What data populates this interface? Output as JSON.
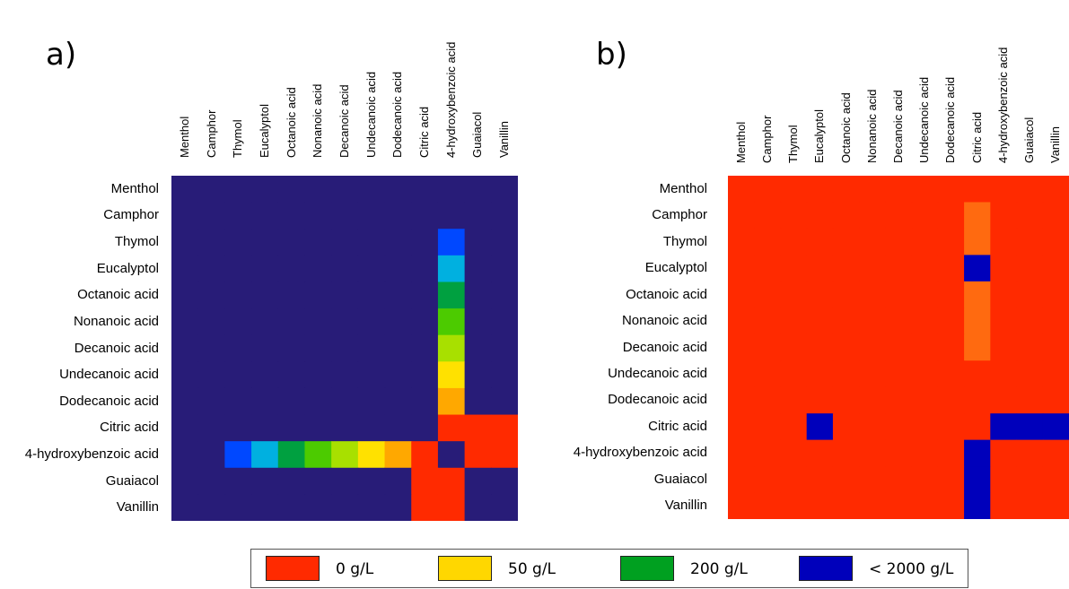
{
  "chart_data": [
    {
      "type": "heatmap",
      "panel_label": "a)",
      "title": "",
      "compounds": [
        "Menthol",
        "Camphor",
        "Thymol",
        "Eucalyptol",
        "Octanoic acid",
        "Nonanoic acid",
        "Decanoic acid",
        "Undecanoic acid",
        "Dodecanoic acid",
        "Citric acid",
        "4-hydroxybenzoic acid",
        "Guaiacol",
        "Vanillin"
      ],
      "unit": "g/L",
      "background": "< 2000 g/L",
      "values_g_per_L": [
        [
          2000,
          2000,
          2000,
          2000,
          2000,
          2000,
          2000,
          2000,
          2000,
          2000,
          2000,
          2000,
          2000
        ],
        [
          2000,
          2000,
          2000,
          2000,
          2000,
          2000,
          2000,
          2000,
          2000,
          2000,
          1500,
          2000,
          2000
        ],
        [
          2000,
          2000,
          2000,
          2000,
          2000,
          2000,
          2000,
          2000,
          2000,
          2000,
          900,
          2000,
          2000
        ],
        [
          2000,
          2000,
          2000,
          2000,
          2000,
          2000,
          2000,
          2000,
          2000,
          2000,
          500,
          2000,
          2000
        ],
        [
          2000,
          2000,
          2000,
          2000,
          2000,
          2000,
          2000,
          2000,
          2000,
          2000,
          250,
          2000,
          2000
        ],
        [
          2000,
          2000,
          2000,
          2000,
          2000,
          2000,
          2000,
          2000,
          2000,
          2000,
          150,
          2000,
          2000
        ],
        [
          2000,
          2000,
          2000,
          2000,
          2000,
          2000,
          2000,
          2000,
          2000,
          2000,
          80,
          2000,
          2000
        ],
        [
          2000,
          2000,
          2000,
          2000,
          2000,
          2000,
          2000,
          2000,
          2000,
          2000,
          50,
          2000,
          2000
        ],
        [
          2000,
          2000,
          2000,
          2000,
          2000,
          2000,
          2000,
          2000,
          2000,
          2000,
          20,
          2000,
          2000
        ],
        [
          2000,
          2000,
          2000,
          2000,
          2000,
          2000,
          2000,
          2000,
          2000,
          2000,
          0,
          0,
          0
        ],
        [
          2000,
          1500,
          900,
          500,
          250,
          150,
          80,
          50,
          20,
          0,
          2000,
          0,
          0
        ],
        [
          2000,
          2000,
          2000,
          2000,
          2000,
          2000,
          2000,
          2000,
          2000,
          0,
          0,
          2000,
          2000
        ],
        [
          2000,
          2000,
          2000,
          2000,
          2000,
          2000,
          2000,
          2000,
          2000,
          0,
          0,
          2000,
          2000
        ]
      ]
    },
    {
      "type": "heatmap",
      "panel_label": "b)",
      "title": "",
      "compounds": [
        "Menthol",
        "Camphor",
        "Thymol",
        "Eucalyptol",
        "Octanoic acid",
        "Nonanoic acid",
        "Decanoic acid",
        "Undecanoic acid",
        "Dodecanoic acid",
        "Citric acid",
        "4-hydroxybenzoic acid",
        "Guaiacol",
        "Vanillin"
      ],
      "unit": "g/L",
      "background": "0 g/L",
      "values_g_per_L": [
        [
          0,
          0,
          0,
          0,
          0,
          0,
          0,
          0,
          0,
          0,
          0,
          0,
          0
        ],
        [
          0,
          0,
          0,
          0,
          0,
          0,
          0,
          0,
          0,
          5,
          0,
          0,
          0
        ],
        [
          0,
          0,
          0,
          0,
          0,
          0,
          0,
          0,
          0,
          10,
          0,
          0,
          0
        ],
        [
          0,
          0,
          0,
          0,
          0,
          0,
          0,
          0,
          0,
          2000,
          0,
          0,
          0
        ],
        [
          0,
          0,
          0,
          0,
          0,
          0,
          0,
          0,
          0,
          5,
          0,
          0,
          0
        ],
        [
          0,
          0,
          0,
          0,
          0,
          0,
          0,
          0,
          0,
          5,
          0,
          0,
          0
        ],
        [
          0,
          0,
          0,
          0,
          0,
          0,
          0,
          0,
          0,
          5,
          0,
          0,
          0
        ],
        [
          0,
          0,
          0,
          0,
          0,
          0,
          0,
          0,
          0,
          0,
          0,
          0,
          0
        ],
        [
          0,
          0,
          0,
          0,
          0,
          0,
          0,
          0,
          0,
          0,
          0,
          0,
          0
        ],
        [
          0,
          0,
          0,
          2000,
          0,
          0,
          0,
          0,
          0,
          0,
          2000,
          2000,
          2000
        ],
        [
          0,
          0,
          0,
          0,
          0,
          0,
          0,
          0,
          0,
          2000,
          0,
          0,
          0
        ],
        [
          0,
          0,
          0,
          0,
          0,
          0,
          0,
          0,
          0,
          2000,
          0,
          0,
          0
        ],
        [
          0,
          0,
          0,
          0,
          0,
          0,
          0,
          0,
          0,
          2000,
          0,
          0,
          0
        ]
      ]
    }
  ],
  "legend": {
    "items": [
      {
        "label": "0 g/L",
        "color": "#FF2A00"
      },
      {
        "label": "50 g/L",
        "color": "#FFD700"
      },
      {
        "label": "200 g/L",
        "color": "#00A020"
      },
      {
        "label": "< 2000 g/L",
        "color": "#0000BB"
      }
    ]
  }
}
